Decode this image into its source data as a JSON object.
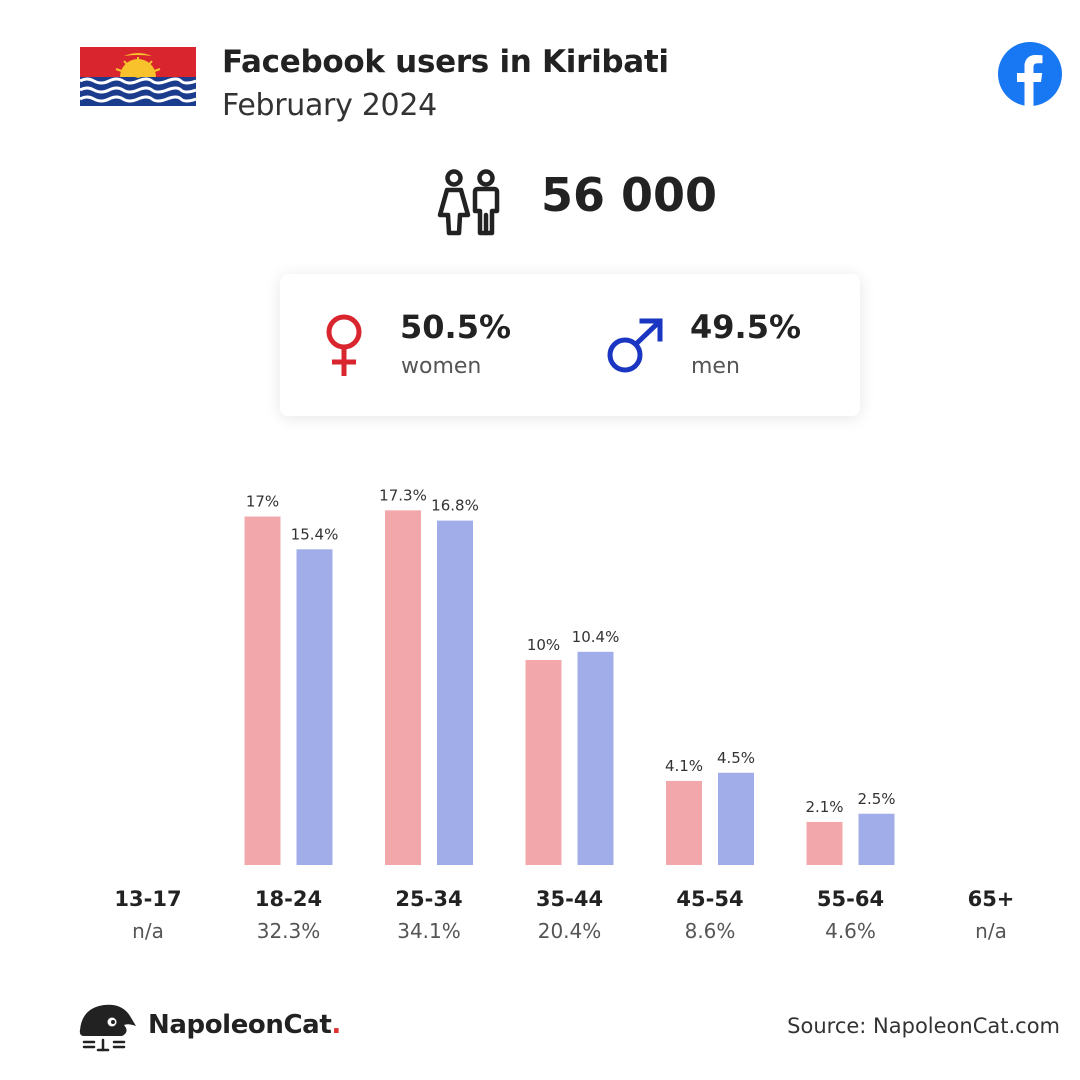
{
  "header": {
    "title": "Facebook users in Kiribati",
    "subtitle": "February 2024"
  },
  "summary": {
    "total_users": "56 000",
    "women_percent": "50.5%",
    "women_label": "women",
    "men_percent": "49.5%",
    "men_label": "men"
  },
  "colors": {
    "women": "#f2a8aa",
    "men": "#a1ade8",
    "female_symbol": "#d9262e",
    "male_symbol": "#1a35c2",
    "facebook_blue": "#1877f2"
  },
  "icons": [
    "kiribati-flag",
    "facebook-logo",
    "people-icon",
    "female-symbol-icon",
    "male-symbol-icon",
    "napoleoncat-logo"
  ],
  "footer": {
    "brand_name": "NapoleonCat",
    "brand_dot": ".",
    "source": "Source: NapoleonCat.com"
  },
  "chart_data": {
    "type": "bar",
    "categories": [
      "13-17",
      "18-24",
      "25-34",
      "35-44",
      "45-54",
      "55-64",
      "65+"
    ],
    "category_totals": [
      "n/a",
      "32.3%",
      "34.1%",
      "20.4%",
      "8.6%",
      "4.6%",
      "n/a"
    ],
    "series": [
      {
        "name": "women",
        "values": [
          null,
          17,
          17.3,
          10,
          4.1,
          2.1,
          null
        ],
        "labels": [
          "",
          "17%",
          "17.3%",
          "10%",
          "4.1%",
          "2.1%",
          ""
        ]
      },
      {
        "name": "men",
        "values": [
          null,
          15.4,
          16.8,
          10.4,
          4.5,
          2.5,
          null
        ],
        "labels": [
          "",
          "15.4%",
          "16.8%",
          "10.4%",
          "4.5%",
          "2.5%",
          ""
        ]
      }
    ],
    "grid": false,
    "legend": "none"
  }
}
